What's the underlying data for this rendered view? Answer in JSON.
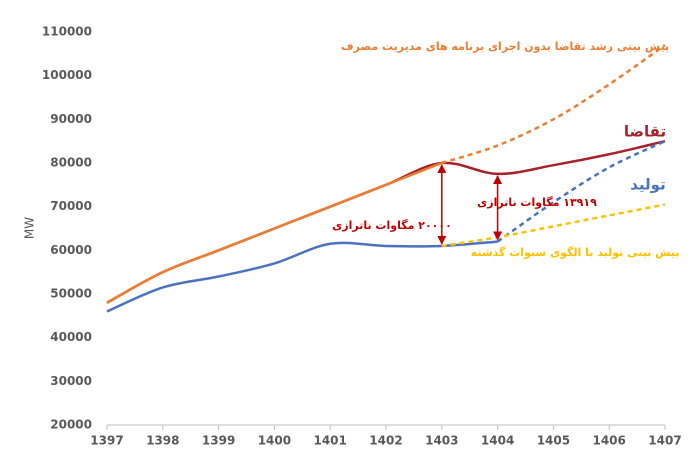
{
  "chart_data": {
    "type": "line",
    "y_label": "MW",
    "x": [
      1397,
      1398,
      1399,
      1400,
      1401,
      1402,
      1403,
      1404,
      1405,
      1406,
      1407
    ],
    "xlim": [
      1397,
      1407
    ],
    "xticks": [
      1397,
      1398,
      1399,
      1400,
      1401,
      1402,
      1403,
      1404,
      1405,
      1406,
      1407
    ],
    "ylim": [
      20000,
      110000
    ],
    "yticks": [
      20000,
      30000,
      40000,
      50000,
      60000,
      70000,
      80000,
      90000,
      100000,
      110000
    ],
    "grid": false,
    "series": [
      {
        "name": "تقاضا",
        "color": "#a5232a",
        "dash": false,
        "values": [
          48000,
          55000,
          60000,
          65000,
          70000,
          75000,
          80000,
          77500,
          79500,
          82000,
          85000
        ]
      },
      {
        "name": "تولید",
        "color": "#4a72c0",
        "dash": false,
        "values": [
          46000,
          51500,
          54000,
          57000,
          61500,
          61000,
          61000,
          62000,
          null,
          null,
          null
        ]
      },
      {
        "color": "#4a72c0",
        "dash": true,
        "values": [
          null,
          null,
          null,
          null,
          null,
          null,
          null,
          62000,
          71000,
          79000,
          85000
        ]
      },
      {
        "color": "#ed7d31",
        "dash": false,
        "values": [
          48000,
          55000,
          60000,
          65000,
          70000,
          75000,
          80000,
          null,
          null,
          null,
          null
        ]
      },
      {
        "name": "پیش بینی رشد تقاضا بدون اجرای برنامه های مدیریت مصرف",
        "color": "#ed7d31",
        "dash": true,
        "values": [
          null,
          null,
          null,
          null,
          null,
          null,
          80000,
          84000,
          90000,
          98000,
          107000
        ]
      },
      {
        "name": "پیش بینی تولید با الگوی سنوات گذشته",
        "color": "#ffc000",
        "dash": true,
        "values": [
          null,
          null,
          null,
          null,
          null,
          null,
          61000,
          63000,
          65500,
          68000,
          70500
        ]
      }
    ],
    "annotations": [
      "۲۰۰۰۰ مگاوات ناترازی",
      "۱۳۹۱۹ مگاوات ناترازی"
    ]
  }
}
